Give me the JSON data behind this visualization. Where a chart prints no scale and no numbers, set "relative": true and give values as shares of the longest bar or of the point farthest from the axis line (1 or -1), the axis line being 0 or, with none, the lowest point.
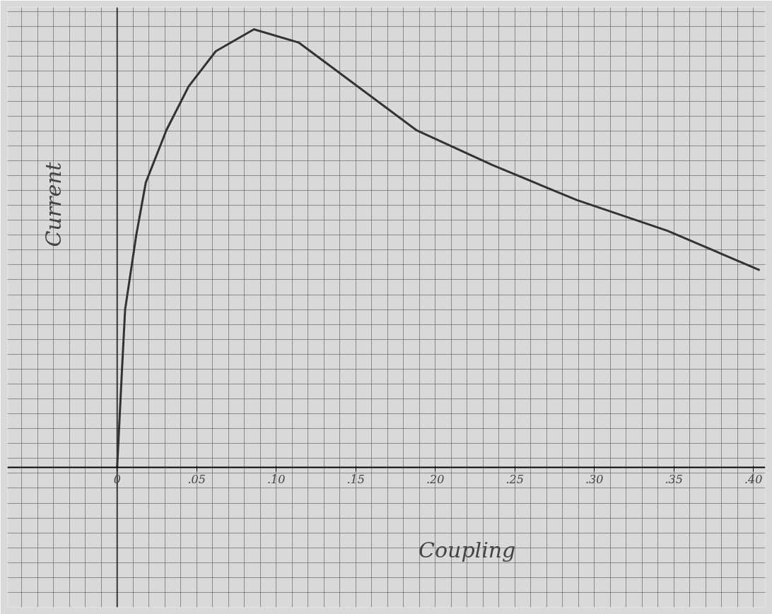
{
  "chart_data": {
    "type": "line",
    "xlabel": "Coupling",
    "ylabel": "Current",
    "relative": true,
    "grid": true,
    "marker": "none",
    "line_style": "solid",
    "xlim": [
      -0.069,
      0.4075
    ],
    "xticks": [
      {
        "value": 0,
        "label": "0"
      },
      {
        "value": 0.05,
        "label": ".05"
      },
      {
        "value": 0.1,
        "label": ".10"
      },
      {
        "value": 0.15,
        "label": ".15"
      },
      {
        "value": 0.2,
        "label": ".20"
      },
      {
        "value": 0.25,
        "label": ".25"
      },
      {
        "value": 0.3,
        "label": ".30"
      },
      {
        "value": 0.35,
        "label": ".35"
      },
      {
        "value": 0.4,
        "label": ".40"
      }
    ],
    "series": [
      {
        "color": "#333333",
        "x": [
          0,
          0.003,
          0.005,
          0.012,
          0.018,
          0.031,
          0.045,
          0.062,
          0.086,
          0.114,
          0.14,
          0.188,
          0.236,
          0.289,
          0.346,
          0.404
        ],
        "values": [
          0,
          0.22,
          0.36,
          0.53,
          0.65,
          0.77,
          0.87,
          0.95,
          1,
          0.97,
          0.9,
          0.77,
          0.69,
          0.61,
          0.54,
          0.45
        ]
      }
    ]
  }
}
